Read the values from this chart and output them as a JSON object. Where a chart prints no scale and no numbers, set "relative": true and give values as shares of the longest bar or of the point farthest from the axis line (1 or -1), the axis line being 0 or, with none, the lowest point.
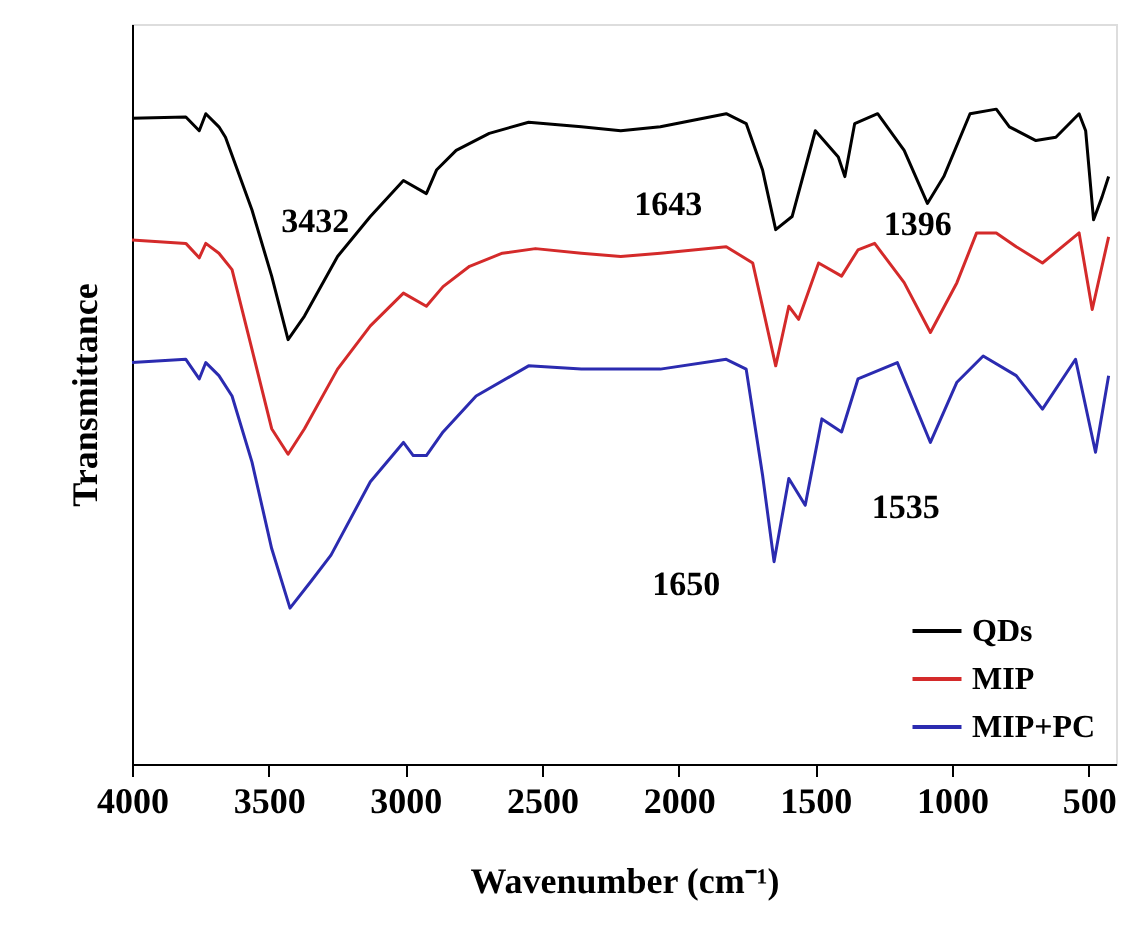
{
  "chart_data": {
    "type": "line",
    "relative": true,
    "xlabel": "Wavenumber (cm⁻¹)",
    "ylabel": "Transmittance",
    "xlim": [
      4000,
      400
    ],
    "xticks": [
      4000,
      3500,
      3000,
      2500,
      2000,
      1500,
      1000,
      500
    ],
    "grid": false,
    "legend": "bottom right",
    "marker": "none",
    "line_style": "solid",
    "annotations": [
      {
        "text": "3432",
        "x": 3432,
        "y": 0.65
      },
      {
        "text": "1643",
        "x": 1643,
        "y": 0.82
      },
      {
        "text": "1396",
        "x": 1396,
        "y": 0.9
      },
      {
        "text": "1650",
        "x": 1650,
        "y": 0.31
      },
      {
        "text": "1535",
        "x": 1535,
        "y": 0.4
      }
    ],
    "series": [
      {
        "name": "QDs",
        "color": "#000000",
        "x": [
          4000,
          3803,
          3754,
          3730,
          3682,
          3658,
          3561,
          3489,
          3429,
          3369,
          3248,
          3128,
          3007,
          2923,
          2886,
          2814,
          2693,
          2549,
          2356,
          2212,
          2067,
          1826,
          1753,
          1693,
          1645,
          1585,
          1500,
          1416,
          1392,
          1356,
          1272,
          1175,
          1090,
          1030,
          934,
          838,
          790,
          693,
          620,
          535,
          511,
          482,
          451,
          427
        ],
        "values": [
          0.986,
          0.988,
          0.967,
          0.993,
          0.973,
          0.957,
          0.846,
          0.745,
          0.648,
          0.684,
          0.775,
          0.836,
          0.891,
          0.871,
          0.907,
          0.937,
          0.963,
          0.98,
          0.973,
          0.967,
          0.973,
          0.993,
          0.978,
          0.907,
          0.816,
          0.836,
          0.967,
          0.927,
          0.897,
          0.978,
          0.993,
          0.937,
          0.856,
          0.897,
          0.993,
          1.0,
          0.973,
          0.952,
          0.957,
          0.993,
          0.967,
          0.831,
          0.866,
          0.897
        ]
      },
      {
        "name": "MIP",
        "color": "#d42a2a",
        "x": [
          4000,
          3803,
          3754,
          3730,
          3682,
          3634,
          3561,
          3489,
          3429,
          3369,
          3248,
          3128,
          3007,
          2923,
          2862,
          2765,
          2645,
          2524,
          2356,
          2212,
          2067,
          1826,
          1729,
          1645,
          1597,
          1561,
          1488,
          1404,
          1344,
          1283,
          1175,
          1079,
          982,
          910,
          838,
          765,
          669,
          535,
          487,
          427
        ],
        "values": [
          0.8,
          0.795,
          0.773,
          0.795,
          0.78,
          0.755,
          0.633,
          0.512,
          0.473,
          0.512,
          0.603,
          0.669,
          0.719,
          0.699,
          0.729,
          0.76,
          0.78,
          0.787,
          0.78,
          0.775,
          0.78,
          0.79,
          0.765,
          0.608,
          0.699,
          0.679,
          0.765,
          0.745,
          0.785,
          0.795,
          0.735,
          0.659,
          0.735,
          0.811,
          0.811,
          0.79,
          0.765,
          0.811,
          0.694,
          0.805
        ]
      },
      {
        "name": "MIP+PC",
        "color": "#2b2bb0",
        "x": [
          4000,
          3803,
          3754,
          3730,
          3682,
          3634,
          3561,
          3489,
          3422,
          3345,
          3272,
          3128,
          3007,
          2971,
          2923,
          2862,
          2741,
          2549,
          2356,
          2212,
          2067,
          1826,
          1753,
          1693,
          1651,
          1597,
          1537,
          1476,
          1404,
          1344,
          1200,
          1079,
          982,
          886,
          765,
          669,
          548,
          475,
          427
        ],
        "values": [
          0.613,
          0.618,
          0.588,
          0.613,
          0.593,
          0.562,
          0.461,
          0.329,
          0.238,
          0.279,
          0.319,
          0.431,
          0.491,
          0.471,
          0.471,
          0.507,
          0.562,
          0.608,
          0.603,
          0.603,
          0.603,
          0.618,
          0.603,
          0.441,
          0.309,
          0.436,
          0.395,
          0.527,
          0.507,
          0.588,
          0.613,
          0.491,
          0.583,
          0.623,
          0.593,
          0.542,
          0.618,
          0.476,
          0.593
        ]
      }
    ]
  }
}
